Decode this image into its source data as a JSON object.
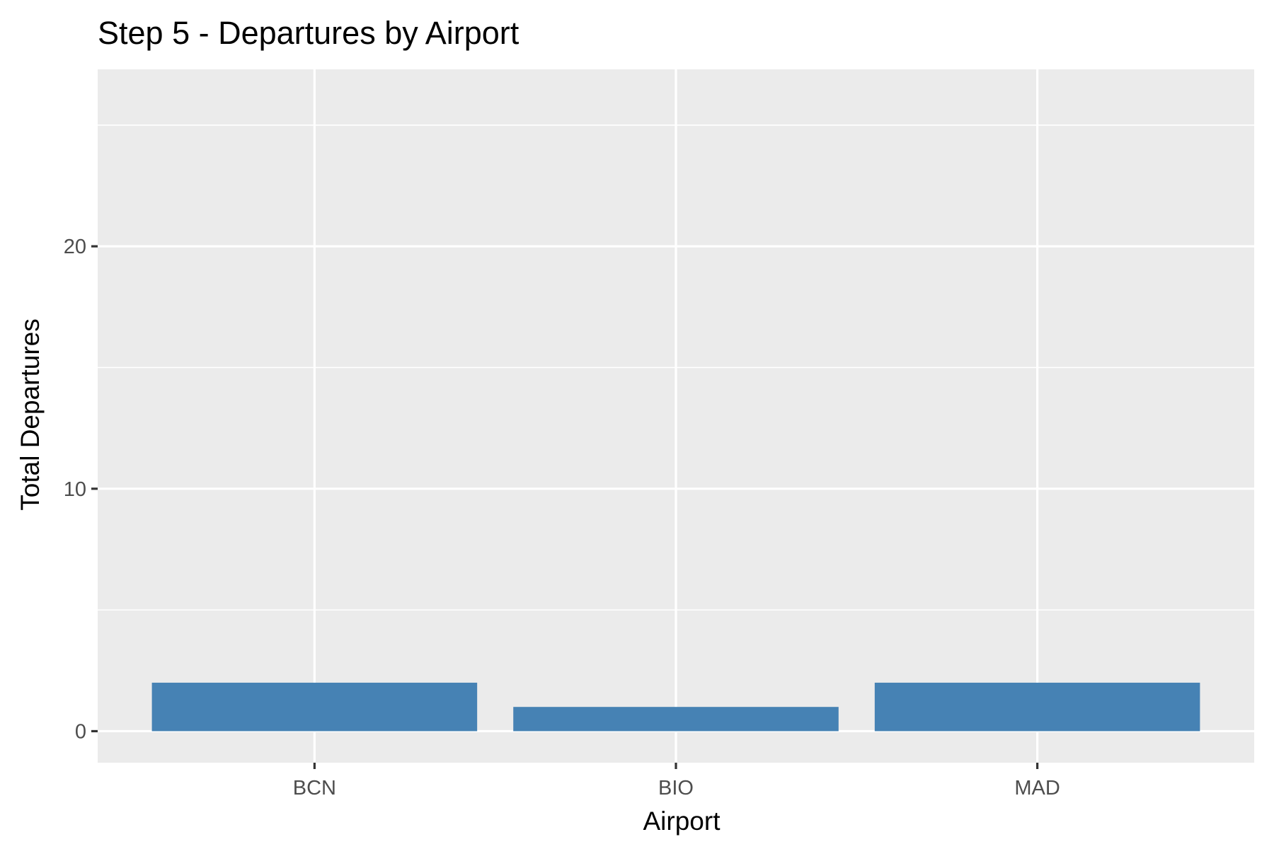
{
  "chart_data": {
    "type": "bar",
    "title": "Step 5 - Departures by Airport",
    "xlabel": "Airport",
    "ylabel": "Total Departures",
    "categories": [
      "BCN",
      "BIO",
      "MAD"
    ],
    "values": [
      2,
      1,
      2
    ],
    "ylim": [
      -1.3,
      27.3
    ],
    "y_ticks": [
      0,
      10,
      20
    ],
    "y_tick_labels": [
      "0",
      "10",
      "20"
    ],
    "y_minor_ticks": [
      5,
      15,
      25
    ],
    "grid": true,
    "colors": {
      "bar": "#4682B4",
      "panel_background": "#EBEBEB",
      "gridline": "#FFFFFF",
      "tick_mark": "#333333"
    }
  }
}
